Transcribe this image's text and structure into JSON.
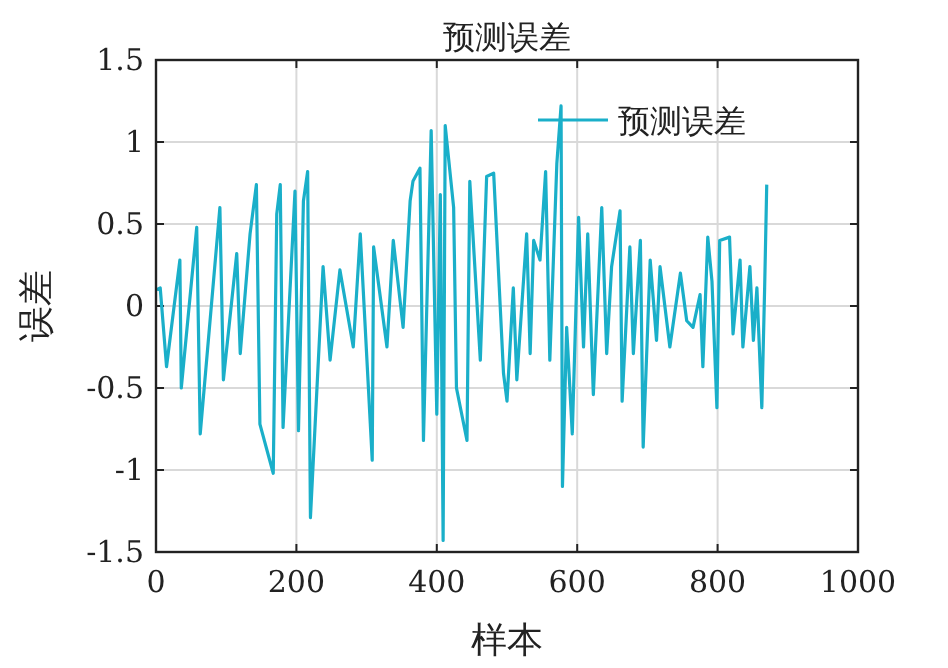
{
  "chart_data": {
    "type": "line",
    "title": "预测误差",
    "xlabel": "样本",
    "ylabel": "误差",
    "xlim": [
      0,
      1000
    ],
    "xticks": [
      0,
      200,
      400,
      600,
      800,
      1000
    ],
    "ylim": [
      -1.5,
      1.5
    ],
    "yticks": [
      -1.5,
      -1,
      -0.5,
      0,
      0.5,
      1,
      1.5
    ],
    "grid": true,
    "legend": "top right",
    "series": [
      {
        "name": "预测误差",
        "color": "#1aafc9",
        "x": [
          1,
          6,
          15,
          34,
          36,
          58,
          63,
          91,
          96,
          115,
          120,
          134,
          143,
          148,
          167,
          172,
          177,
          181,
          198,
          203,
          210,
          216,
          220,
          226,
          238,
          248,
          262,
          281,
          291,
          308,
          310,
          329,
          338,
          352,
          362,
          366,
          376,
          381,
          392,
          400,
          405,
          409,
          412,
          424,
          428,
          443,
          447,
          462,
          471,
          481,
          495,
          500,
          509,
          514,
          528,
          533,
          538,
          547,
          555,
          561,
          571,
          577,
          579,
          585,
          593,
          602,
          609,
          615,
          623,
          635,
          642,
          649,
          661,
          664,
          675,
          680,
          690,
          694,
          704,
          713,
          718,
          732,
          747,
          756,
          765,
          775,
          779,
          786,
          792,
          799,
          803,
          817,
          822,
          832,
          836,
          846,
          851,
          856,
          863,
          867,
          870
        ],
        "values": [
          0.1,
          0.11,
          -0.37,
          0.28,
          -0.5,
          0.48,
          -0.78,
          0.6,
          -0.45,
          0.32,
          -0.29,
          0.44,
          0.74,
          -0.72,
          -1.02,
          0.56,
          0.74,
          -0.74,
          0.7,
          -0.76,
          0.64,
          0.82,
          -1.29,
          -0.78,
          0.24,
          -0.33,
          0.22,
          -0.25,
          0.44,
          -0.94,
          0.36,
          -0.25,
          0.4,
          -0.13,
          0.64,
          0.76,
          0.84,
          -0.82,
          1.07,
          -0.66,
          0.68,
          -1.43,
          1.1,
          0.6,
          -0.5,
          -0.82,
          0.76,
          -0.33,
          0.79,
          0.81,
          -0.41,
          -0.58,
          0.11,
          -0.45,
          0.44,
          -0.29,
          0.4,
          0.28,
          0.82,
          -0.33,
          0.87,
          1.22,
          -1.1,
          -0.13,
          -0.78,
          0.54,
          -0.25,
          0.44,
          -0.54,
          0.6,
          -0.29,
          0.24,
          0.58,
          -0.58,
          0.36,
          -0.29,
          0.4,
          -0.86,
          0.28,
          -0.21,
          0.24,
          -0.25,
          0.2,
          -0.09,
          -0.13,
          0.07,
          -0.37,
          0.42,
          0.15,
          -0.62,
          0.4,
          0.42,
          -0.17,
          0.28,
          -0.25,
          0.24,
          -0.21,
          0.11,
          -0.62,
          0.11,
          0.74
        ]
      }
    ]
  }
}
